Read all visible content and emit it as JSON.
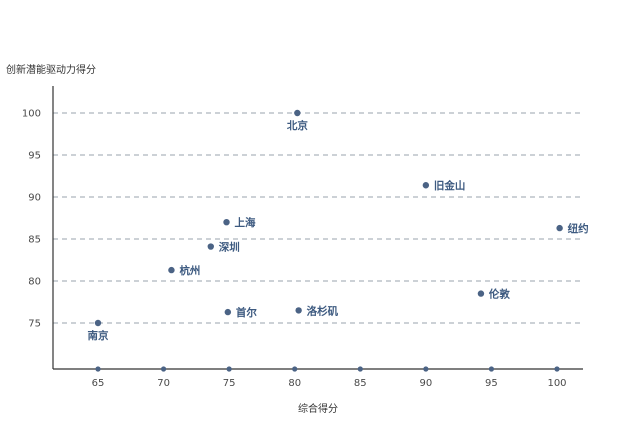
{
  "chart_data": {
    "type": "scatter",
    "title": "",
    "xlabel": "综合得分",
    "ylabel": "创新潜能驱动力得分",
    "xlim": [
      61.5,
      102
    ],
    "ylim": [
      70.5,
      103
    ],
    "xticks": [
      65,
      70,
      75,
      80,
      85,
      90,
      95,
      100
    ],
    "yticks": [
      75,
      80,
      85,
      90,
      95,
      100
    ],
    "grid": "horizontal-dashed",
    "color": "#4b6385",
    "points": [
      {
        "label": "北京",
        "x": 80.2,
        "y": 100.0,
        "label_pos": "below"
      },
      {
        "label": "旧金山",
        "x": 90.0,
        "y": 91.4,
        "label_pos": "right"
      },
      {
        "label": "纽约",
        "x": 100.2,
        "y": 86.3,
        "label_pos": "right"
      },
      {
        "label": "上海",
        "x": 74.8,
        "y": 87.0,
        "label_pos": "right"
      },
      {
        "label": "深圳",
        "x": 73.6,
        "y": 84.1,
        "label_pos": "right"
      },
      {
        "label": "杭州",
        "x": 70.6,
        "y": 81.3,
        "label_pos": "right"
      },
      {
        "label": "伦敦",
        "x": 94.2,
        "y": 78.5,
        "label_pos": "right"
      },
      {
        "label": "首尔",
        "x": 74.9,
        "y": 76.3,
        "label_pos": "right"
      },
      {
        "label": "洛杉矶",
        "x": 80.3,
        "y": 76.5,
        "label_pos": "right"
      },
      {
        "label": "南京",
        "x": 65.0,
        "y": 75.0,
        "label_pos": "below"
      }
    ]
  }
}
